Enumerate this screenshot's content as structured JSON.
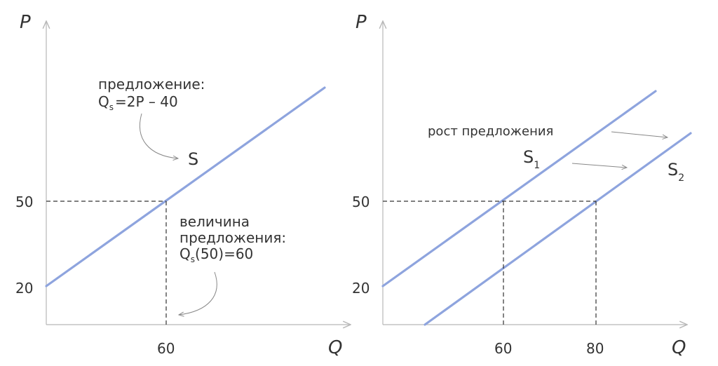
{
  "left": {
    "y_axis_label": "P",
    "x_axis_label": "Q",
    "curve_label": "S",
    "annotation_line1": "предложение:",
    "formula_q": "Q",
    "formula_sub": "s",
    "formula_rest": "=2P – 40",
    "qty_line1": "величина",
    "qty_line2": "предложения:",
    "qty_q": "Q",
    "qty_sub": "s",
    "qty_rest": "(50)=60",
    "ticks_y": [
      "50",
      "20"
    ],
    "ticks_x": [
      "60"
    ]
  },
  "right": {
    "y_axis_label": "P",
    "x_axis_label": "Q",
    "growth_label": "рост предложения",
    "s1_main": "S",
    "s1_sub": "1",
    "s2_main": "S",
    "s2_sub": "2",
    "ticks_y": [
      "50",
      "20"
    ],
    "ticks_x": [
      "60",
      "80"
    ]
  },
  "colors": {
    "curve": "#8ea4de",
    "text": "#333333",
    "axis": "#b8b8b8"
  }
}
